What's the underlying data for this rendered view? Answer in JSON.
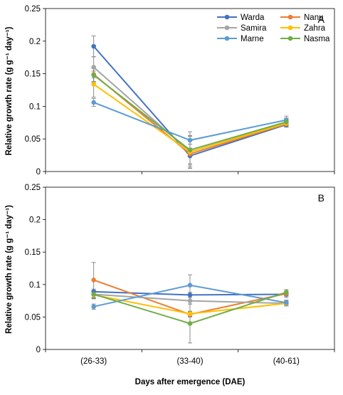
{
  "chart_data": [
    {
      "type": "line",
      "panel_label": "A",
      "ylabel": "Relative growth rate (g g⁻¹ day⁻¹)",
      "xlabel": "",
      "categories": [
        "(26-33)",
        "(33-40)",
        "(40-61)"
      ],
      "ylim": [
        0,
        0.25
      ],
      "yticks": [
        0,
        0.05,
        0.1,
        0.15,
        0.2,
        0.25
      ],
      "ytick_labels": [
        "0",
        "0.05",
        "0.1",
        "0.15",
        "0.2",
        "0.25"
      ],
      "grid": false,
      "legend_position": "top-right",
      "series": [
        {
          "name": "Warda",
          "color": "#4472C4",
          "values": [
            0.192,
            0.024,
            0.072
          ],
          "errors": [
            0.016,
            0.012,
            0.004
          ]
        },
        {
          "name": "Nanu",
          "color": "#ED7D31",
          "values": [
            0.149,
            0.027,
            0.073
          ],
          "errors": [
            0.012,
            0.02,
            0.004
          ]
        },
        {
          "name": "Samira",
          "color": "#A5A5A5",
          "values": [
            0.16,
            0.03,
            0.075
          ],
          "errors": [
            0.016,
            0.025,
            0.006
          ]
        },
        {
          "name": "Zahra",
          "color": "#FFC000",
          "values": [
            0.134,
            0.03,
            0.074
          ],
          "errors": [
            0.02,
            0.02,
            0.004
          ]
        },
        {
          "name": "Marne",
          "color": "#5B9BD5",
          "values": [
            0.106,
            0.048,
            0.079
          ],
          "errors": [
            0.006,
            0.006,
            0.006
          ]
        },
        {
          "name": "Nasma",
          "color": "#70AD47",
          "values": [
            0.148,
            0.033,
            0.076
          ],
          "errors": [
            0.01,
            0.028,
            0.006
          ]
        }
      ]
    },
    {
      "type": "line",
      "panel_label": "B",
      "ylabel": "Relative growth rate (g g⁻¹ day⁻¹)",
      "xlabel": "Days after emergence (DAE)",
      "categories": [
        "(26-33)",
        "(33-40)",
        "(40-61)"
      ],
      "ylim": [
        0,
        0.25
      ],
      "yticks": [
        0,
        0.05,
        0.1,
        0.15,
        0.2,
        0.25
      ],
      "ytick_labels": [
        "0",
        "0.05",
        "0.1",
        "0.15",
        "0.2",
        "0.25"
      ],
      "grid": false,
      "series": [
        {
          "name": "Warda",
          "color": "#4472C4",
          "values": [
            0.089,
            0.084,
            0.085
          ],
          "errors": [
            0.004,
            0.004,
            0.003
          ]
        },
        {
          "name": "Nanu",
          "color": "#ED7D31",
          "values": [
            0.107,
            0.054,
            0.086
          ],
          "errors": [
            0.027,
            0.004,
            0.006
          ]
        },
        {
          "name": "Samira",
          "color": "#A5A5A5",
          "values": [
            0.085,
            0.075,
            0.071
          ],
          "errors": [
            0.006,
            0.005,
            0.004
          ]
        },
        {
          "name": "Zahra",
          "color": "#FFC000",
          "values": [
            0.084,
            0.055,
            0.071
          ],
          "errors": [
            0.006,
            0.004,
            0.003
          ]
        },
        {
          "name": "Marne",
          "color": "#5B9BD5",
          "values": [
            0.066,
            0.099,
            0.072
          ],
          "errors": [
            0.004,
            0.016,
            0.004
          ]
        },
        {
          "name": "Nasma",
          "color": "#70AD47",
          "values": [
            0.085,
            0.04,
            0.088
          ],
          "errors": [
            0.006,
            0.03,
            0.004
          ]
        }
      ]
    }
  ]
}
